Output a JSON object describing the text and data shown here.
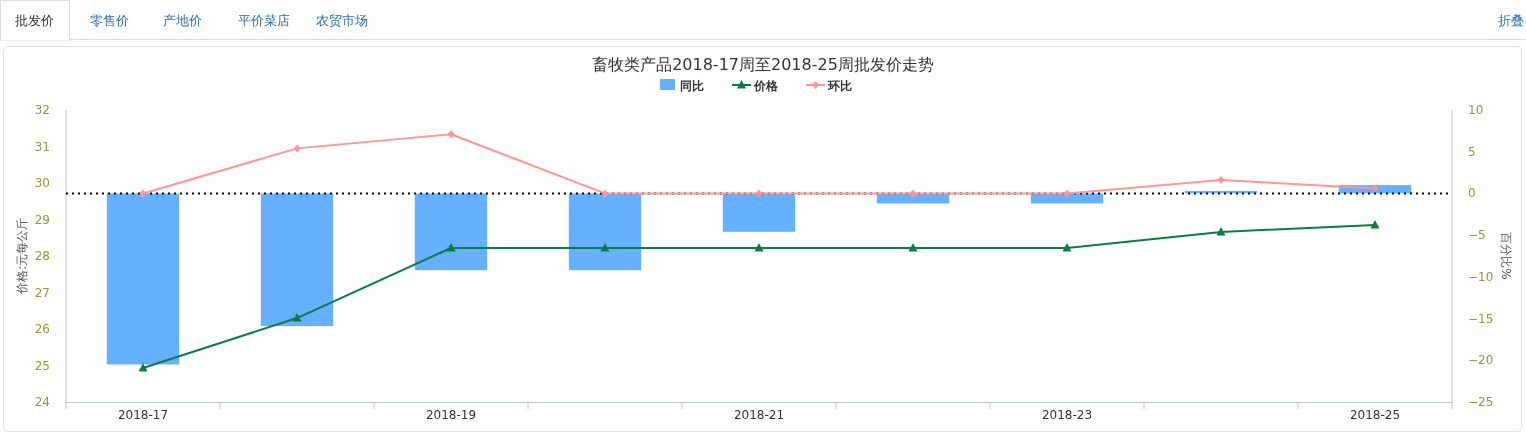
{
  "chart_data": {
    "type": "bar",
    "title": "畜牧类产品2018-17周至2018-25周批发价走势",
    "annotations": [
      "批发价",
      "零售价",
      "产地价",
      "平价菜店",
      "农贸市场",
      "折叠"
    ],
    "categories": [
      "2018-17",
      null,
      "2018-19",
      null,
      "2018-21",
      null,
      "2018-23",
      null,
      "2018-25"
    ],
    "series": [
      {
        "name": "同比",
        "axis": "y2",
        "color": "#66b1ff",
        "values": [
          -20.5,
          -15.9,
          -9.2,
          -9.2,
          -4.6,
          -1.2,
          -1.2,
          0.3,
          1.0
        ]
      },
      {
        "name": "价格",
        "type": "line",
        "axis": "y",
        "color": "#0a7c47",
        "marker": "triangle",
        "values": [
          24.93,
          26.3,
          28.22,
          28.22,
          28.22,
          28.22,
          28.22,
          28.66,
          28.85
        ]
      },
      {
        "name": "环比",
        "type": "line",
        "axis": "y2",
        "color": "#ff9595",
        "marker": "diamond",
        "values": [
          0,
          5.4,
          7.1,
          0,
          0,
          0,
          0,
          1.6,
          0.6
        ]
      }
    ],
    "ylabel": "价格:元每公斤",
    "y2label": "百分比%",
    "ylim": [
      24,
      32
    ],
    "yticks": [
      24,
      25,
      26,
      27,
      28,
      29,
      30,
      31,
      32
    ],
    "y2lim": [
      -25,
      10
    ],
    "y2ticks": [
      -25,
      -20,
      -15,
      -10,
      -5,
      0,
      5,
      10
    ],
    "ref_lines": [
      {
        "axis": "y2",
        "value": 0,
        "line_style": "dotted",
        "color": "#000000"
      }
    ],
    "legend": "top"
  }
}
